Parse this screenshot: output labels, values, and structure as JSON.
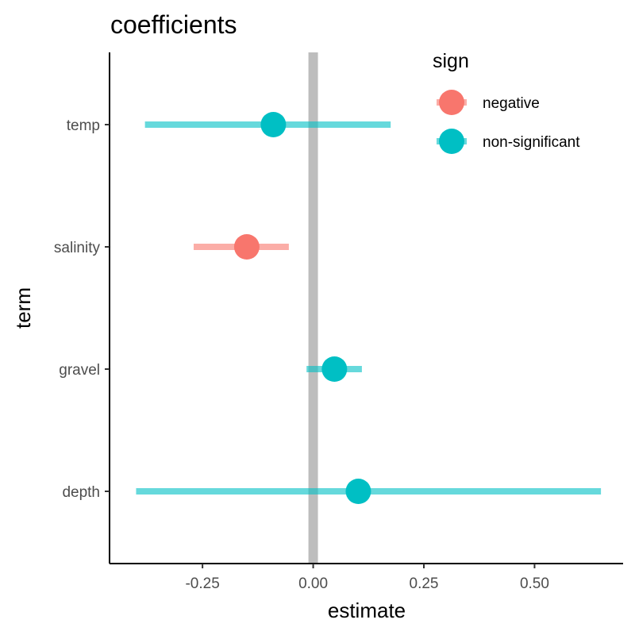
{
  "chart_data": {
    "type": "scatter",
    "title": "coefficients",
    "xlabel": "estimate",
    "ylabel": "term",
    "xlim": [
      -0.46,
      0.7
    ],
    "xticks": [
      -0.25,
      0.0,
      0.25,
      0.5
    ],
    "xtick_labels": [
      "-0.25",
      "0.00",
      "0.25",
      "0.50"
    ],
    "categories": [
      "temp",
      "salinity",
      "gravel",
      "depth"
    ],
    "reference_line": 0.0,
    "grid": false,
    "legend": {
      "title": "sign",
      "position": "top-right",
      "entries": [
        {
          "label": "negative",
          "color": "#F8766D"
        },
        {
          "label": "non-significant",
          "color": "#00BFC4"
        }
      ]
    },
    "points": [
      {
        "term": "temp",
        "estimate": -0.09,
        "low": -0.38,
        "high": 0.175,
        "sign": "non-significant"
      },
      {
        "term": "salinity",
        "estimate": -0.15,
        "low": -0.27,
        "high": -0.055,
        "sign": "negative"
      },
      {
        "term": "gravel",
        "estimate": 0.048,
        "low": -0.015,
        "high": 0.11,
        "sign": "non-significant"
      },
      {
        "term": "depth",
        "estimate": 0.102,
        "low": -0.4,
        "high": 0.65,
        "sign": "non-significant"
      }
    ]
  }
}
